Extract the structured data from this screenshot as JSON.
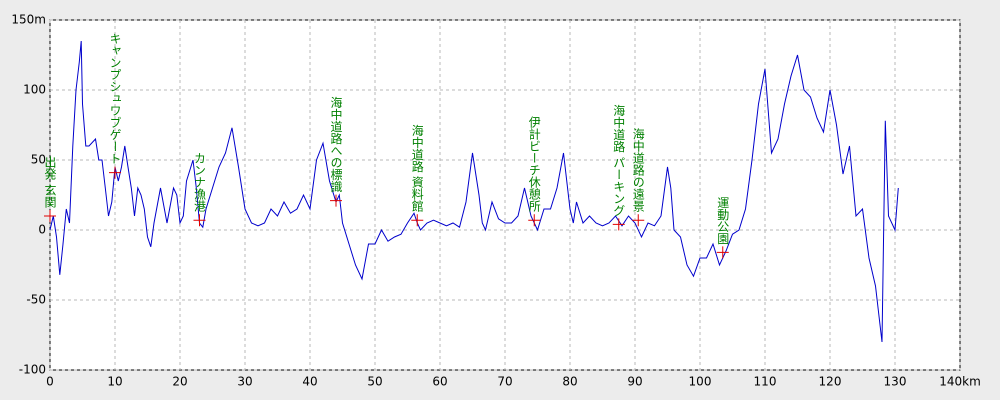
{
  "chart_data": {
    "type": "line",
    "xlim": [
      0,
      140
    ],
    "xticks": [
      0,
      10,
      20,
      30,
      40,
      50,
      60,
      70,
      80,
      90,
      100,
      110,
      120,
      130,
      {
        "value": 140,
        "label": "140km"
      }
    ],
    "ylim": [
      -100,
      150
    ],
    "yticks": [
      -100,
      -50,
      0,
      50,
      100,
      {
        "value": 150,
        "label": "150m"
      }
    ],
    "grid": true,
    "series": [
      {
        "color": "#0000cc",
        "x": [
          0,
          0.5,
          1,
          1.5,
          2,
          2.5,
          3,
          3.5,
          4,
          4.5,
          4.8,
          5,
          5.5,
          6,
          7,
          7.5,
          8,
          8.5,
          9,
          9.5,
          10,
          10.5,
          11,
          11.5,
          12,
          12.5,
          13,
          13.5,
          14,
          14.5,
          15,
          15.5,
          16,
          17,
          18,
          19,
          19.5,
          20,
          20.5,
          21,
          22,
          22.5,
          23,
          23.5,
          24,
          25,
          26,
          27,
          28,
          29,
          30,
          31,
          32,
          33,
          34,
          35,
          36,
          37,
          38,
          39,
          40,
          41,
          42,
          43,
          44,
          44.5,
          45,
          46,
          47,
          48,
          49,
          50,
          51,
          52,
          53,
          54,
          55,
          56,
          56.5,
          57,
          58,
          59,
          60,
          61,
          62,
          63,
          64,
          65,
          66,
          66.5,
          67,
          68,
          69,
          70,
          71,
          72,
          73,
          74,
          75,
          76,
          77,
          78,
          79,
          80,
          80.5,
          81,
          82,
          83,
          84,
          85,
          86,
          87,
          88,
          89,
          90,
          91,
          92,
          93,
          94,
          95,
          95.5,
          96,
          97,
          98,
          99,
          100,
          101,
          102,
          103,
          104,
          105,
          106,
          107,
          108,
          109,
          110,
          111,
          112,
          113,
          114,
          115,
          116,
          117,
          118,
          119,
          120,
          121,
          122,
          123,
          124,
          125,
          126,
          127,
          128,
          128.5,
          129,
          130,
          130.5
        ],
        "values": [
          0,
          10,
          -5,
          -32,
          -10,
          15,
          5,
          60,
          100,
          120,
          135,
          90,
          60,
          60,
          65,
          50,
          50,
          30,
          10,
          20,
          45,
          35,
          45,
          60,
          45,
          30,
          10,
          30,
          25,
          15,
          -5,
          -12,
          5,
          30,
          5,
          30,
          25,
          5,
          10,
          35,
          50,
          30,
          5,
          2,
          15,
          30,
          45,
          55,
          73,
          45,
          15,
          5,
          3,
          5,
          15,
          10,
          20,
          12,
          15,
          25,
          15,
          50,
          62,
          35,
          20,
          25,
          5,
          -10,
          -25,
          -35,
          -10,
          -10,
          0,
          -8,
          -5,
          -3,
          5,
          12,
          5,
          0,
          5,
          7,
          5,
          3,
          5,
          2,
          20,
          55,
          25,
          5,
          0,
          20,
          8,
          5,
          5,
          10,
          30,
          10,
          0,
          15,
          15,
          30,
          55,
          15,
          5,
          20,
          5,
          10,
          5,
          3,
          5,
          10,
          3,
          10,
          5,
          -5,
          5,
          3,
          10,
          45,
          30,
          0,
          -5,
          -25,
          -33,
          -20,
          -20,
          -10,
          -25,
          -15,
          -3,
          0,
          15,
          50,
          90,
          115,
          55,
          65,
          90,
          110,
          125,
          100,
          95,
          80,
          70,
          100,
          75,
          40,
          60,
          10,
          15,
          -20,
          -40,
          -80,
          78,
          10,
          0,
          30
        ]
      }
    ],
    "annotations": [
      {
        "x": 0,
        "y": 10,
        "label": "出発 玄関"
      },
      {
        "x": 10,
        "y": 41,
        "label": "キャンプシュワブゲート"
      },
      {
        "x": 23,
        "y": 7,
        "label": "カンナ漁港"
      },
      {
        "x": 44,
        "y": 21,
        "label": "海中道路への標識"
      },
      {
        "x": 56.5,
        "y": 7,
        "label": "海中道路 資料館"
      },
      {
        "x": 74.5,
        "y": 7,
        "label": "伊計ビーチ休憩所"
      },
      {
        "x": 87.5,
        "y": 4,
        "label": "海中道路 パーキング"
      },
      {
        "x": 90.5,
        "y": 7,
        "label": "海中道路の遠景"
      },
      {
        "x": 103.5,
        "y": -16,
        "label": "運動公園"
      }
    ]
  }
}
